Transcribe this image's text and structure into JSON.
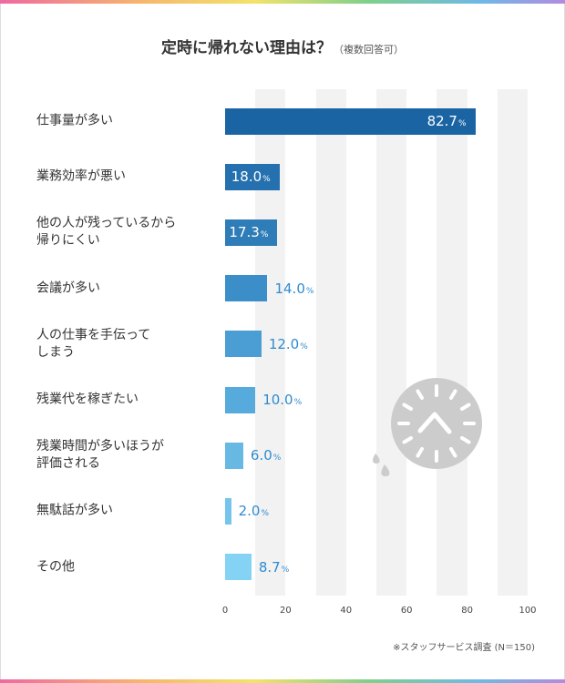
{
  "title": "定時に帰れない理由は？",
  "subtitle": "（複数回答可）",
  "note": "※スタッフサービス調査 (N＝150)",
  "chart_data": {
    "type": "bar",
    "orientation": "horizontal",
    "title": "定時に帰れない理由は？",
    "categories": [
      "仕事量が多い",
      "業務効率が悪い",
      "他の人が残っているから\n帰りにくい",
      "会議が多い",
      "人の仕事を手伝って\nしまう",
      "残業代を稼ぎたい",
      "残業時間が多いほうが\n評価される",
      "無駄話が多い",
      "その他"
    ],
    "values": [
      82.7,
      18.0,
      17.3,
      14.0,
      12.0,
      10.0,
      6.0,
      2.0,
      8.7
    ],
    "value_labels": [
      "82.7",
      "18.0",
      "17.3",
      "14.0",
      "12.0",
      "10.0",
      "6.0",
      "2.0",
      "8.7"
    ],
    "unit": "%",
    "xlim": [
      0,
      100
    ],
    "xticks": [
      "0",
      "20",
      "40",
      "60",
      "80",
      "100"
    ],
    "colors": [
      "#1b64a3",
      "#2570ae",
      "#2f7db8",
      "#3b8ec8",
      "#4a9ed3",
      "#57abdc",
      "#67b9e4",
      "#74c4ec",
      "#84d2f4"
    ],
    "label_color": "#2f8bd0",
    "band_color": "#f2f2f2"
  }
}
